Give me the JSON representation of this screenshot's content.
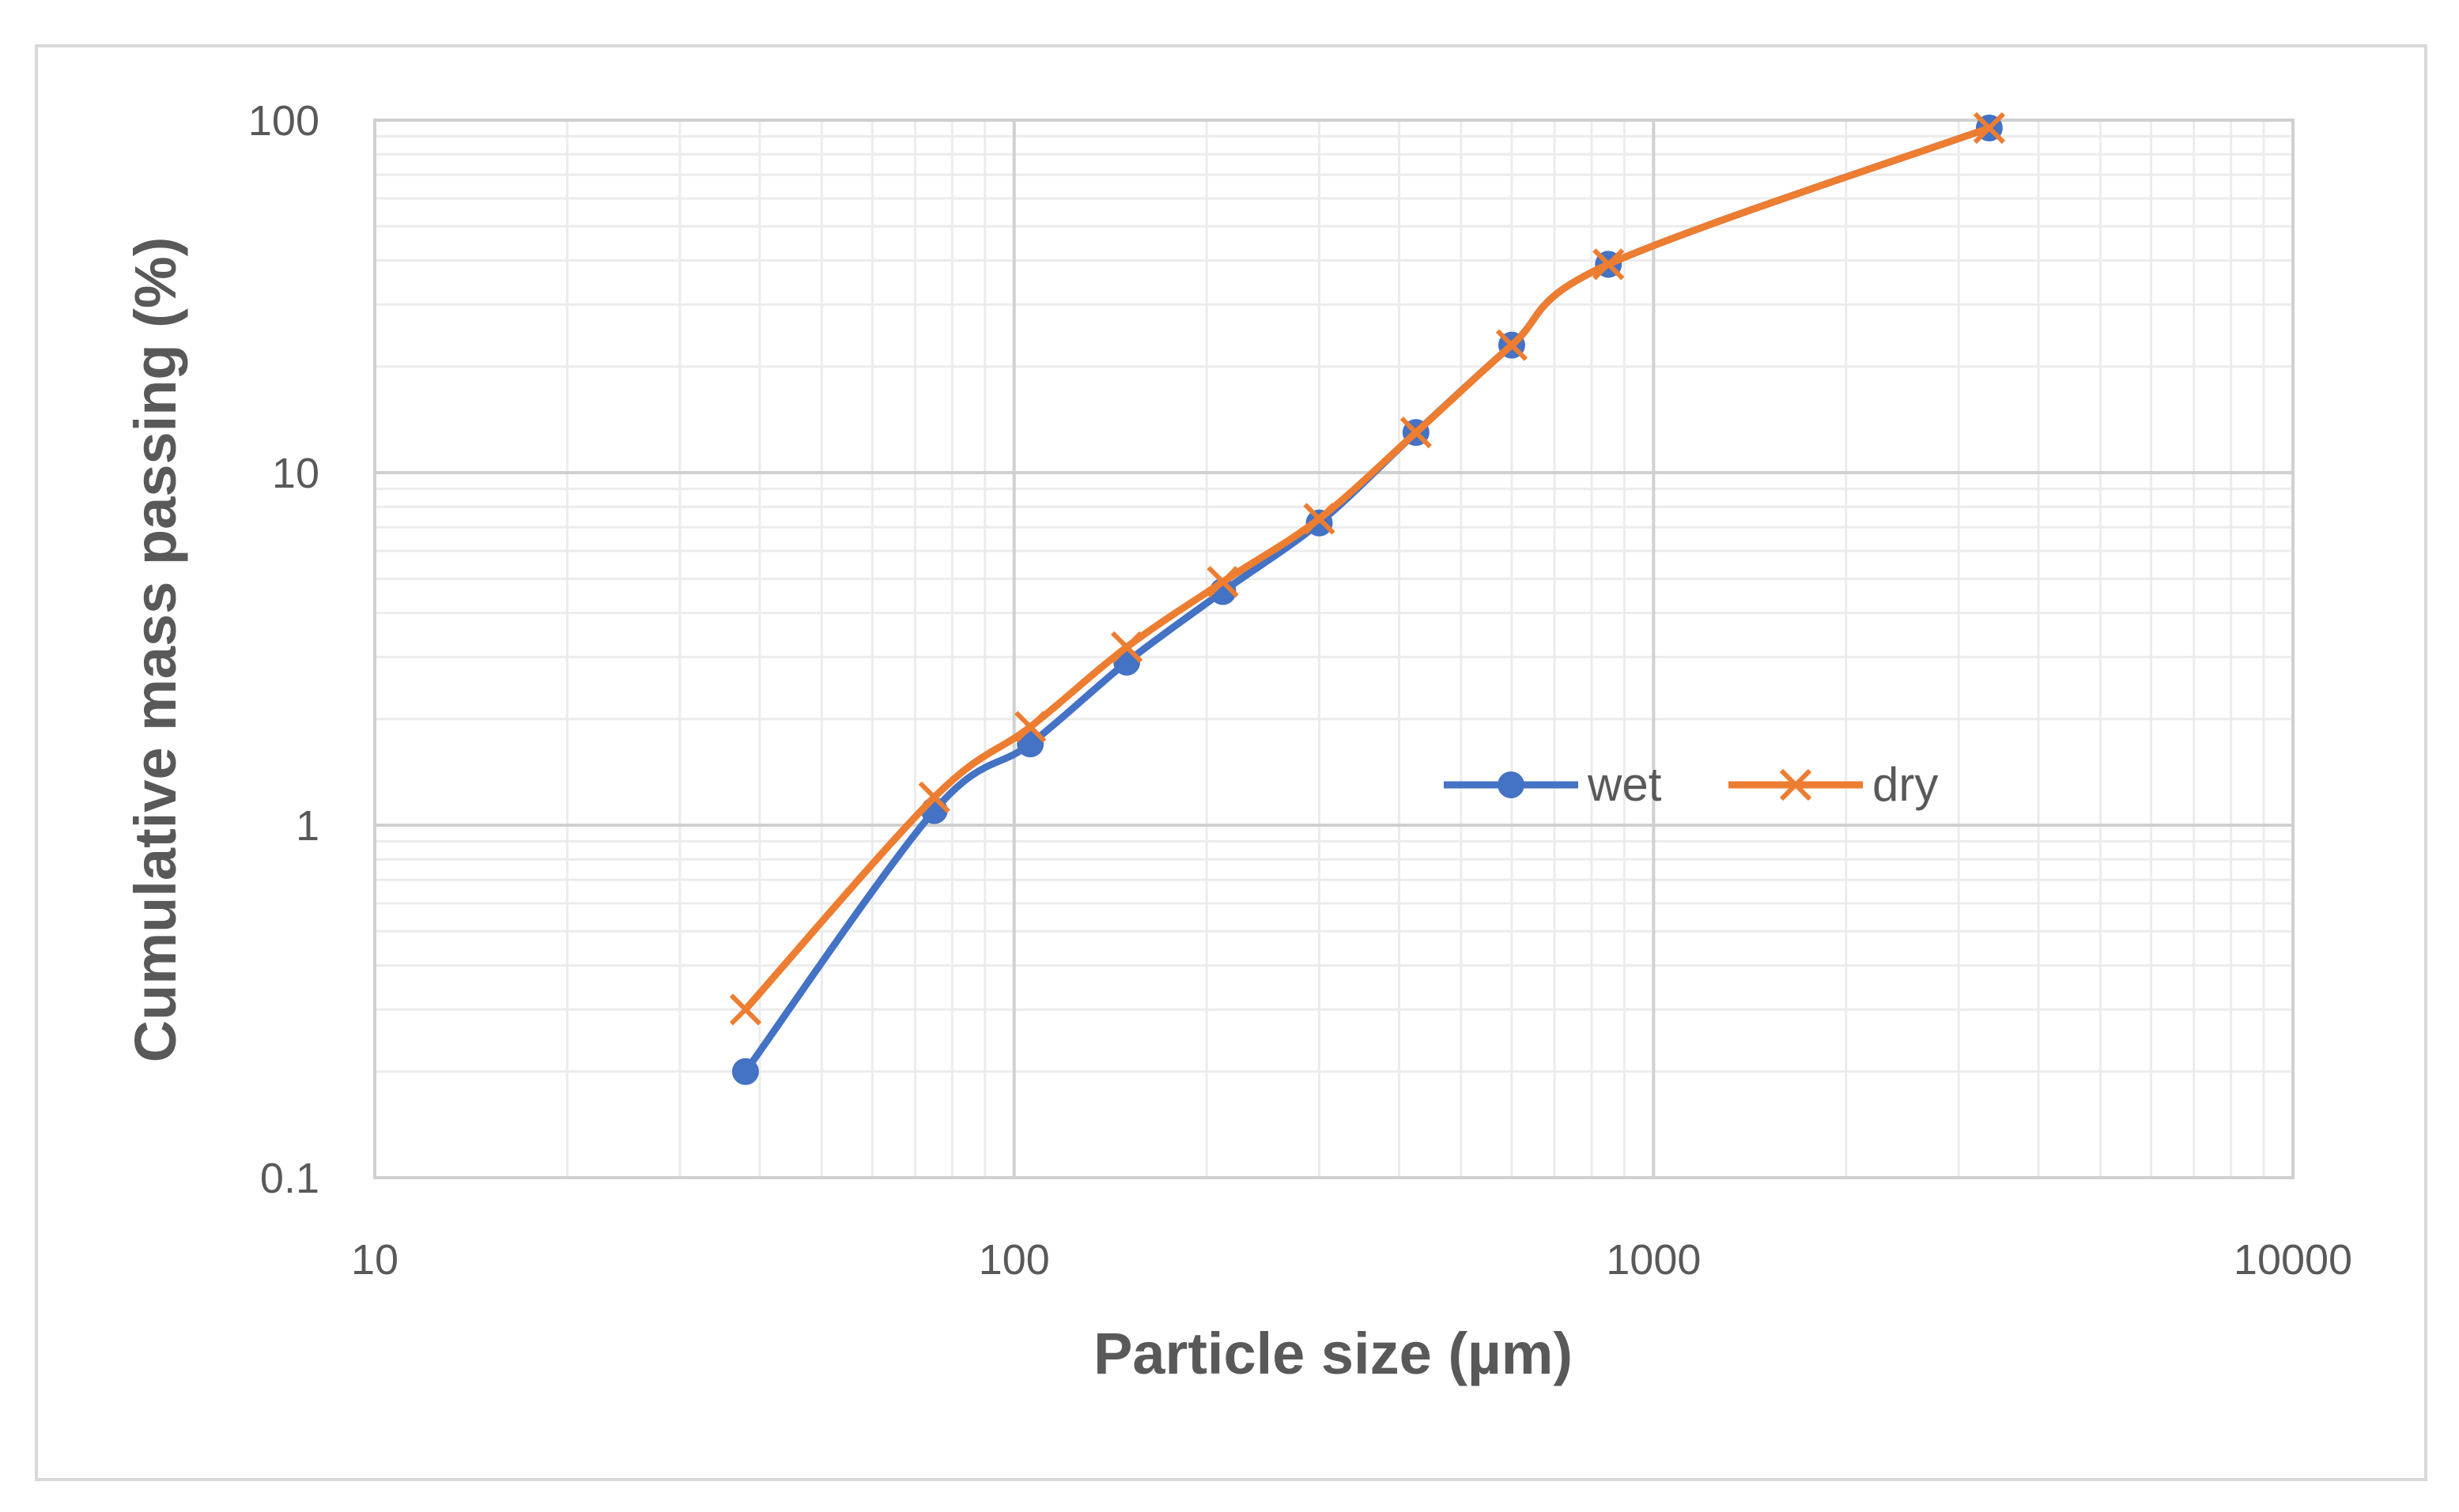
{
  "chart_data": {
    "type": "line",
    "title": "",
    "xlabel": "Particle size (µm)",
    "ylabel": "Cumulative mass passing (%)",
    "xscale": "log",
    "yscale": "log",
    "xlim": [
      10,
      10000
    ],
    "ylim": [
      0.1,
      100
    ],
    "x_ticks": [
      "10",
      "100",
      "1000",
      "10000"
    ],
    "y_ticks": [
      "0.1",
      "1",
      "10",
      "100"
    ],
    "grid": true,
    "legend_position": "center-right",
    "series": [
      {
        "name": "wet",
        "color": "#4472C4",
        "marker": "circle",
        "x": [
          38,
          75,
          106,
          150,
          212,
          300,
          425,
          600,
          850,
          3350
        ],
        "y": [
          0.2,
          1.1,
          1.7,
          2.9,
          4.6,
          7.2,
          13,
          23,
          39,
          95
        ]
      },
      {
        "name": "dry",
        "color": "#ED7D31",
        "marker": "x",
        "x": [
          38,
          75,
          106,
          150,
          212,
          300,
          425,
          600,
          850,
          3350
        ],
        "y": [
          0.3,
          1.2,
          1.9,
          3.2,
          4.9,
          7.4,
          13,
          23,
          39,
          95
        ]
      }
    ]
  }
}
